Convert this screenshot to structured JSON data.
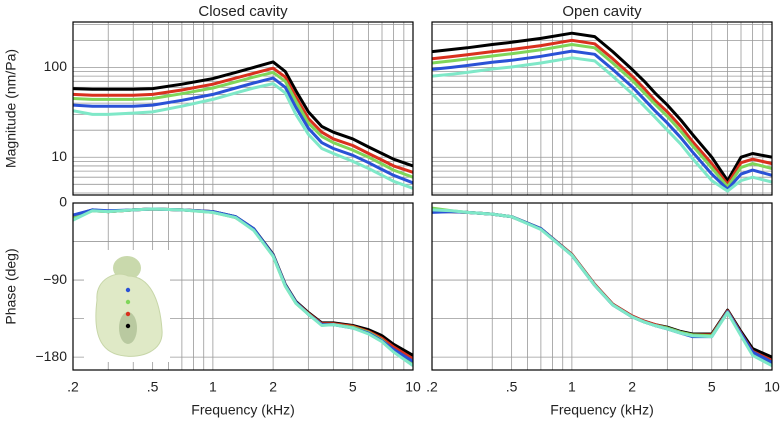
{
  "chart_data": [
    {
      "type": "line",
      "title": "Closed cavity",
      "ylabel": "Magnitude (nm/Pa)",
      "xscale": "log",
      "yscale": "log",
      "grid": true,
      "tick_labels": {
        "x": false,
        "y": true
      },
      "x": [
        0.2,
        0.25,
        0.3,
        0.4,
        0.5,
        0.7,
        1,
        1.3,
        1.6,
        2,
        2.3,
        2.6,
        3,
        3.5,
        4,
        5,
        6,
        7,
        8,
        10
      ],
      "xlim": [
        0.2,
        10
      ],
      "xticks": [
        {
          "value": 0.2,
          "label": ".2"
        },
        {
          "value": 0.5,
          "label": ".5"
        },
        1,
        2,
        5,
        10
      ],
      "xminorticks": [
        0.3,
        0.4,
        0.6,
        0.7,
        0.8,
        0.9,
        3,
        4,
        6,
        7,
        8,
        9
      ],
      "ylim": [
        3.8,
        320
      ],
      "yticks": [
        10,
        100
      ],
      "yminorticks": [
        4,
        5,
        6,
        7,
        8,
        9,
        20,
        30,
        40,
        50,
        60,
        70,
        80,
        90,
        200,
        300
      ],
      "series": [
        {
          "color": "#000000",
          "values": [
            58,
            57,
            57,
            57,
            58,
            65,
            75,
            88,
            100,
            115,
            90,
            55,
            32,
            22,
            19,
            16,
            13,
            11,
            9.5,
            8
          ]
        },
        {
          "color": "#d9301e",
          "values": [
            50,
            49,
            49,
            49,
            50,
            56,
            65,
            76,
            86,
            98,
            78,
            47,
            27,
            19,
            16,
            13.5,
            11,
            9.3,
            8,
            6.8
          ]
        },
        {
          "color": "#7fd65a",
          "values": [
            45,
            44,
            44,
            44,
            45,
            51,
            59,
            69,
            78,
            88,
            70,
            42,
            24,
            17,
            14.5,
            12,
            10,
            8.4,
            7.2,
            6
          ]
        },
        {
          "color": "#2a52d6",
          "values": [
            38,
            37,
            37,
            37,
            38,
            43,
            50,
            59,
            67,
            76,
            60,
            36,
            21,
            14.5,
            12.5,
            10.5,
            8.7,
            7.3,
            6.3,
            5.2
          ]
        },
        {
          "color": "#7fe8c8",
          "values": [
            33,
            30,
            30,
            31,
            32,
            37,
            44,
            52,
            59,
            66,
            52,
            30,
            18,
            12.5,
            11,
            9,
            7.5,
            6.3,
            5.4,
            4.5
          ]
        }
      ]
    },
    {
      "type": "line",
      "title": "Open cavity",
      "xscale": "log",
      "yscale": "log",
      "grid": true,
      "tick_labels": {
        "x": false,
        "y": false
      },
      "x": [
        0.2,
        0.25,
        0.3,
        0.4,
        0.5,
        0.7,
        1,
        1.3,
        1.6,
        2,
        2.3,
        2.6,
        3,
        3.5,
        4,
        5,
        6,
        7,
        8,
        10
      ],
      "xlim": [
        0.2,
        10
      ],
      "xticks": [
        0.2,
        0.5,
        1,
        2,
        5,
        10
      ],
      "xminorticks": [
        0.3,
        0.4,
        0.6,
        0.7,
        0.8,
        0.9,
        3,
        4,
        6,
        7,
        8,
        9
      ],
      "ylim": [
        3.8,
        320
      ],
      "yticks": [
        10,
        100
      ],
      "yminorticks": [
        4,
        5,
        6,
        7,
        8,
        9,
        20,
        30,
        40,
        50,
        60,
        70,
        80,
        90,
        200,
        300
      ],
      "series": [
        {
          "color": "#000000",
          "values": [
            150,
            158,
            165,
            180,
            190,
            210,
            240,
            220,
            150,
            95,
            70,
            52,
            38,
            26,
            18,
            10,
            5.5,
            10,
            11,
            10
          ]
        },
        {
          "color": "#d9301e",
          "values": [
            125,
            132,
            138,
            150,
            158,
            175,
            200,
            183,
            125,
            80,
            58,
            43,
            32,
            22,
            15,
            8.5,
            5,
            8.7,
            9.5,
            8.5
          ]
        },
        {
          "color": "#7fd65a",
          "values": [
            112,
            118,
            124,
            134,
            142,
            157,
            180,
            165,
            112,
            72,
            52,
            39,
            28.5,
            19.5,
            13.5,
            7.6,
            4.7,
            7.7,
            8.5,
            7.5
          ]
        },
        {
          "color": "#2a52d6",
          "values": [
            95,
            100,
            105,
            114,
            120,
            133,
            152,
            140,
            95,
            61,
            44,
            33,
            24,
            16.5,
            11.5,
            6.5,
            4.4,
            6.5,
            7.2,
            6.3
          ]
        },
        {
          "color": "#7fe8c8",
          "values": [
            80,
            84,
            88,
            96,
            101,
            112,
            128,
            118,
            80,
            51,
            37,
            28,
            20,
            14,
            9.7,
            5.5,
            4.2,
            5.5,
            6,
            5.3
          ]
        }
      ]
    },
    {
      "type": "line",
      "xlabel": "Frequency (kHz)",
      "ylabel": "Phase (deg)",
      "xscale": "log",
      "yscale": "linear",
      "grid": true,
      "tick_labels": {
        "x": true,
        "y": true
      },
      "x": [
        0.2,
        0.25,
        0.3,
        0.4,
        0.5,
        0.7,
        1,
        1.3,
        1.6,
        2,
        2.3,
        2.6,
        3,
        3.5,
        4,
        5,
        6,
        7,
        8,
        10
      ],
      "xlim": [
        0.2,
        10
      ],
      "xticks": [
        {
          "value": 0.2,
          "label": ".2"
        },
        {
          "value": 0.5,
          "label": ".5"
        },
        1,
        2,
        5,
        10
      ],
      "xminorticks": [
        0.3,
        0.4,
        0.6,
        0.7,
        0.8,
        0.9,
        3,
        4,
        6,
        7,
        8,
        9
      ],
      "ylim": [
        -195,
        0
      ],
      "yticks": [
        0,
        {
          "value": -90,
          "label": "−90"
        },
        {
          "value": -180,
          "label": "−180"
        }
      ],
      "yminorticks": [
        -45,
        -135
      ],
      "series": [
        {
          "color": "#000000",
          "values": [
            -15,
            -8,
            -10,
            -8,
            -7,
            -8,
            -10,
            -16,
            -30,
            -60,
            -95,
            -115,
            -128,
            -140,
            -140,
            -143,
            -148,
            -155,
            -165,
            -178
          ]
        },
        {
          "color": "#d9301e",
          "values": [
            -16,
            -9,
            -10,
            -8,
            -7,
            -8,
            -10,
            -17,
            -31,
            -61,
            -96,
            -116,
            -129,
            -141,
            -141,
            -144,
            -150,
            -158,
            -168,
            -182
          ]
        },
        {
          "color": "#7fd65a",
          "values": [
            -18,
            -9,
            -10,
            -8,
            -7,
            -8,
            -11,
            -17,
            -31,
            -62,
            -97,
            -117,
            -130,
            -142,
            -142,
            -145,
            -151,
            -160,
            -172,
            -188
          ]
        },
        {
          "color": "#2a52d6",
          "values": [
            -14,
            -8,
            -9,
            -8,
            -7,
            -8,
            -10,
            -16,
            -30,
            -61,
            -96,
            -116,
            -130,
            -142,
            -142,
            -146,
            -152,
            -161,
            -171,
            -185
          ]
        },
        {
          "color": "#7fe8c8",
          "values": [
            -20,
            -9,
            -10,
            -8,
            -7,
            -8,
            -11,
            -17,
            -32,
            -62,
            -97,
            -117,
            -130,
            -143,
            -142,
            -146,
            -153,
            -162,
            -174,
            -190
          ]
        }
      ]
    },
    {
      "type": "line",
      "xlabel": "Frequency (kHz)",
      "xscale": "log",
      "yscale": "linear",
      "grid": true,
      "tick_labels": {
        "x": true,
        "y": false
      },
      "x": [
        0.2,
        0.25,
        0.3,
        0.4,
        0.5,
        0.7,
        1,
        1.3,
        1.6,
        2,
        2.3,
        2.6,
        3,
        3.5,
        4,
        5,
        6,
        7,
        8,
        10
      ],
      "xlim": [
        0.2,
        10
      ],
      "xticks": [
        {
          "value": 0.2,
          "label": ".2"
        },
        {
          "value": 0.5,
          "label": ".5"
        },
        1,
        2,
        5,
        10
      ],
      "xminorticks": [
        0.3,
        0.4,
        0.6,
        0.7,
        0.8,
        0.9,
        3,
        4,
        6,
        7,
        8,
        9
      ],
      "ylim": [
        -195,
        0
      ],
      "yticks": [
        0,
        -90,
        -180
      ],
      "yminorticks": [
        -45,
        -135
      ],
      "series": [
        {
          "color": "#000000",
          "values": [
            -10,
            -10,
            -11,
            -13,
            -16,
            -30,
            -60,
            -95,
            -118,
            -132,
            -138,
            -142,
            -145,
            -150,
            -153,
            -153,
            -125,
            -150,
            -170,
            -180
          ]
        },
        {
          "color": "#d9301e",
          "values": [
            -10,
            -10,
            -11,
            -13,
            -16,
            -30,
            -60,
            -95,
            -118,
            -132,
            -138,
            -142,
            -146,
            -151,
            -154,
            -154,
            -126,
            -152,
            -173,
            -184
          ]
        },
        {
          "color": "#7fd65a",
          "values": [
            -6,
            -9,
            -11,
            -13,
            -16,
            -30,
            -61,
            -96,
            -119,
            -133,
            -139,
            -143,
            -146,
            -151,
            -154,
            -155,
            -127,
            -154,
            -176,
            -188
          ]
        },
        {
          "color": "#2a52d6",
          "values": [
            -11,
            -10,
            -11,
            -13,
            -16,
            -30,
            -61,
            -96,
            -119,
            -133,
            -139,
            -143,
            -147,
            -152,
            -156,
            -156,
            -127,
            -153,
            -174,
            -186
          ]
        },
        {
          "color": "#7fe8c8",
          "values": [
            -8,
            -9,
            -11,
            -13,
            -16,
            -31,
            -61,
            -96,
            -119,
            -133,
            -139,
            -143,
            -147,
            -152,
            -155,
            -156,
            -128,
            -155,
            -178,
            -190
          ]
        }
      ]
    }
  ]
}
